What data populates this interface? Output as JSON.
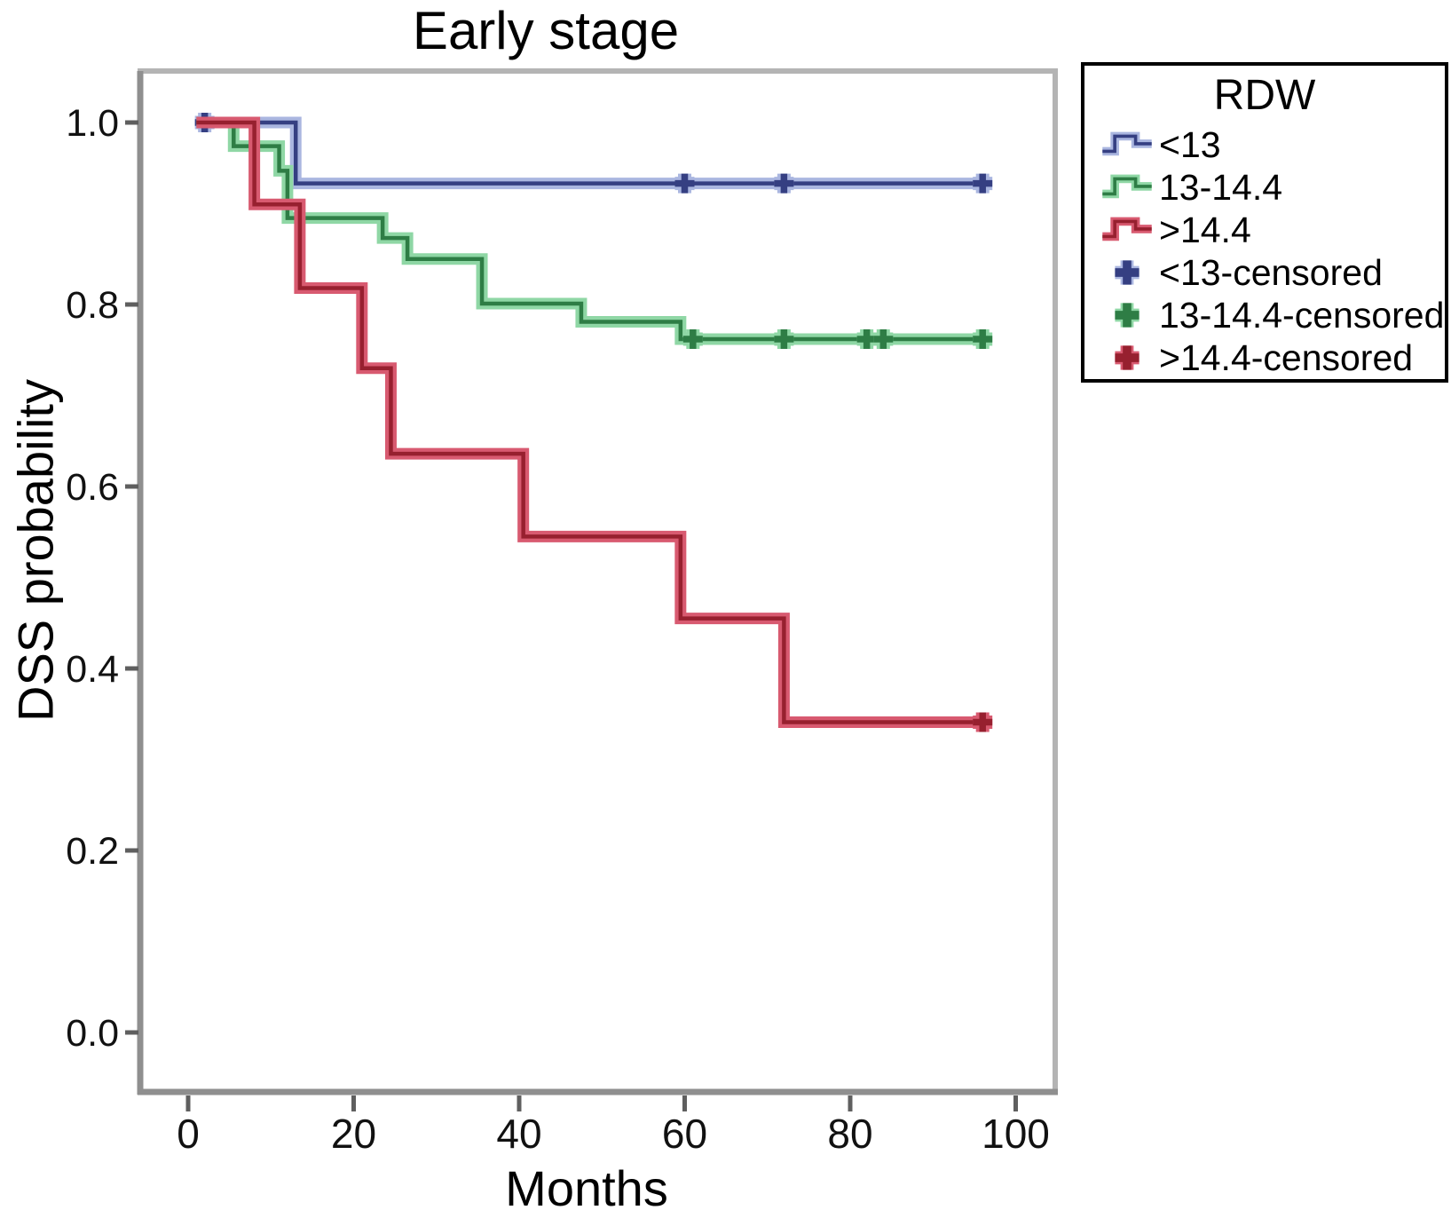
{
  "title": "Early stage",
  "legend": {
    "title": "RDW",
    "items": [
      {
        "label": "<13",
        "glyph": "line",
        "series": 0
      },
      {
        "label": "13-14.4",
        "glyph": "line",
        "series": 1
      },
      {
        "label": ">14.4",
        "glyph": "line",
        "series": 2
      },
      {
        "label": "<13-censored",
        "glyph": "plus",
        "series": 0
      },
      {
        "label": "13-14.4-censored",
        "glyph": "plus",
        "series": 1
      },
      {
        "label": ">14.4-censored",
        "glyph": "plus",
        "series": 2
      }
    ]
  },
  "chart_data": {
    "type": "line",
    "variant": "kaplan-meier-step",
    "title": "Early stage",
    "xlabel": "Months",
    "ylabel": "DSS probability",
    "xlim": [
      0,
      100
    ],
    "ylim": [
      0.0,
      1.0
    ],
    "xticks": [
      0,
      20,
      40,
      60,
      80,
      100
    ],
    "yticks": [
      1.0,
      0.8,
      0.6,
      0.4,
      0.2,
      0.0
    ],
    "grid": false,
    "legend_position": "outside-top-right",
    "series": [
      {
        "name": "<13",
        "color": "#353f82",
        "halo": "#aab6e0",
        "start": 1,
        "end": 96,
        "events": [
          [
            13,
            0.933
          ]
        ],
        "censored": [
          [
            2,
            1.0
          ],
          [
            60,
            0.933
          ],
          [
            72,
            0.933
          ],
          [
            96,
            0.933
          ]
        ]
      },
      {
        "name": "13-14.4",
        "color": "#2e7d45",
        "halo": "#8fd7a5",
        "start": 1,
        "end": 96,
        "events": [
          [
            5.5,
            0.974
          ],
          [
            11,
            0.947
          ],
          [
            12,
            0.895
          ],
          [
            23.5,
            0.873
          ],
          [
            26.5,
            0.85
          ],
          [
            35.5,
            0.801
          ],
          [
            47.5,
            0.781
          ],
          [
            59.5,
            0.762
          ]
        ],
        "censored": [
          [
            61,
            0.762
          ],
          [
            72,
            0.762
          ],
          [
            82,
            0.762
          ],
          [
            84,
            0.762
          ],
          [
            96,
            0.762
          ]
        ]
      },
      {
        "name": ">14.4",
        "color": "#97202f",
        "halo": "#d85a70",
        "start": 1,
        "end": 96,
        "events": [
          [
            8,
            0.91
          ],
          [
            13.5,
            0.818
          ],
          [
            21,
            0.73
          ],
          [
            24.5,
            0.636
          ],
          [
            40.5,
            0.545
          ],
          [
            59.5,
            0.455
          ],
          [
            72,
            0.341
          ]
        ],
        "censored": [
          [
            96,
            0.341
          ]
        ]
      }
    ]
  }
}
